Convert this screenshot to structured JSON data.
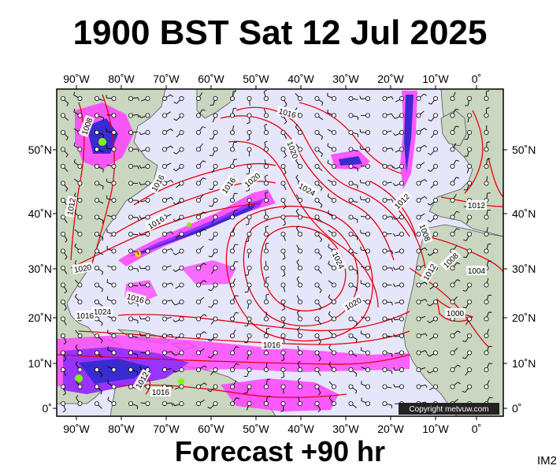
{
  "title": "1900 BST Sat 12 Jul 2025",
  "footer": "Forecast +90 hr",
  "image_id_label": "IM2",
  "copyright": "Copyright metvuw.com",
  "axes": {
    "top_lon_labels": [
      "90˚W",
      "80˚W",
      "70˚W",
      "60˚W",
      "50˚W",
      "40˚W",
      "30˚W",
      "20˚W",
      "10˚W",
      "0˚"
    ],
    "bottom_lon_labels": [
      "90˚W",
      "80˚W",
      "70˚W",
      "60˚W",
      "50˚W",
      "40˚W",
      "30˚W",
      "20˚W",
      "10˚W",
      "0˚"
    ],
    "left_lat_labels": [
      "50˚N",
      "40˚N",
      "30˚N",
      "20˚N",
      "10˚N",
      "0˚"
    ],
    "right_lat_labels": [
      "50˚N",
      "40˚N",
      "30˚N",
      "20˚N",
      "10˚N",
      "0˚"
    ]
  },
  "isobar_labels": [
    "1008",
    "1016",
    "1020",
    "1024",
    "1016",
    "1016",
    "1012",
    "1016",
    "1020",
    "1024",
    "1020",
    "1024",
    "1012",
    "1012",
    "1008",
    "1004",
    "1000",
    "1012",
    "1016",
    "1020",
    "1016",
    "1016",
    "1012",
    "1016",
    "1008"
  ],
  "colors": {
    "ocean": "#e6e6fa",
    "land": "#c9d6c0",
    "isobar": "#e8000b",
    "wind_barb": "#000000",
    "precip_light": "#ff40ff",
    "precip_medium": "#9933ff",
    "precip_heavy": "#3a2bd0",
    "precip_core": "#7cfc00"
  }
}
